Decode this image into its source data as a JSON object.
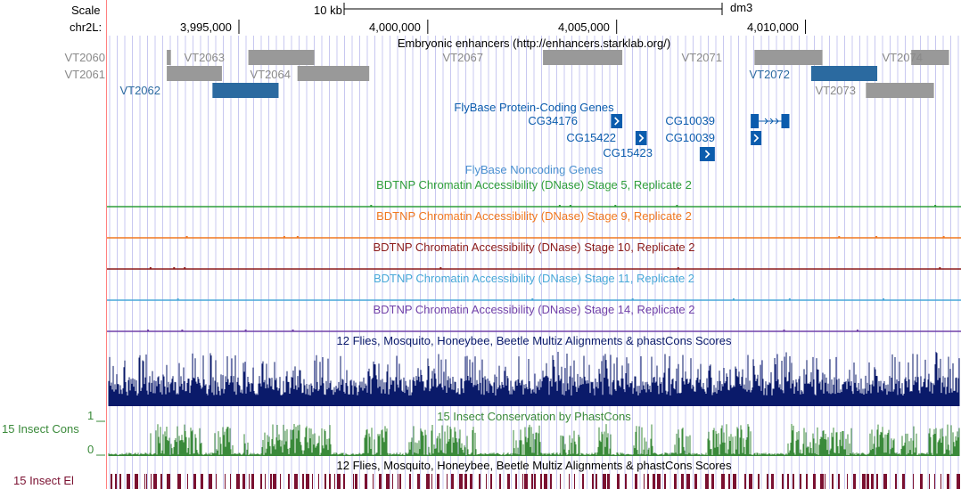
{
  "ruler": {
    "scale_label": "Scale",
    "chrom_label": "chr2L:",
    "scale_bar_text": "10 kb",
    "assembly": "dm3",
    "positions": [
      {
        "label": "3,995,000",
        "pos": 3995000
      },
      {
        "label": "4,000,000",
        "pos": 4000000
      },
      {
        "label": "4,005,000",
        "pos": 4005000
      },
      {
        "label": "4,010,000",
        "pos": 4010000
      }
    ]
  },
  "colors": {
    "grid": "#c8c8f0",
    "red_line": "#ff8080",
    "enhancer_gray": "#999999",
    "enhancer_blue": "#2b6aa0",
    "gene_blue": "#0b5cad",
    "noncoding_blue": "#4a90d0",
    "dnase_stage5": "#2e9e3a",
    "dnase_stage9": "#f07820",
    "dnase_stage10": "#8b1a1a",
    "dnase_stage11": "#48a8d8",
    "dnase_stage14": "#7040a8",
    "multiz": "#0a1a6a",
    "insect_cons": "#3a8a3a",
    "insect_el": "#7a1030"
  },
  "tracks": {
    "enhancers": {
      "title": "Embryonic enhancers (http://enhancers.starklab.org/)",
      "items": [
        {
          "label": "VT2060",
          "start": 3993090,
          "end": 3993200,
          "row": 0,
          "highlight": false
        },
        {
          "label": "VT2063",
          "start": 3995250,
          "end": 3997000,
          "row": 0,
          "highlight": false
        },
        {
          "label": "VT2067",
          "start": 4003050,
          "end": 4005150,
          "row": 0,
          "highlight": false
        },
        {
          "label": "VT2071",
          "start": 4008650,
          "end": 4010450,
          "row": 0,
          "highlight": false
        },
        {
          "label": "VT2074",
          "start": 4012800,
          "end": 4013800,
          "row": 0,
          "highlight": false
        },
        {
          "label": "VT2061",
          "start": 3993090,
          "end": 3994550,
          "row": 1,
          "highlight": false
        },
        {
          "label": "VT2064",
          "start": 3996550,
          "end": 3998450,
          "row": 1,
          "highlight": false
        },
        {
          "label": "VT2072",
          "start": 4010150,
          "end": 4011900,
          "row": 1,
          "highlight": true
        },
        {
          "label": "VT2062",
          "start": 3994300,
          "end": 3996050,
          "row": 2,
          "highlight": true
        },
        {
          "label": "VT2073",
          "start": 4011600,
          "end": 4013400,
          "row": 2,
          "highlight": false
        }
      ]
    },
    "coding_genes": {
      "title": "FlyBase Protein-Coding Genes",
      "items": [
        {
          "label": "CG34176",
          "start": 4004850,
          "end": 4005150,
          "row": 0
        },
        {
          "label": "CG10039",
          "start": 4008550,
          "end": 4009550,
          "row": 0
        },
        {
          "label": "CG15422",
          "start": 4005500,
          "end": 4005800,
          "row": 1
        },
        {
          "label": "CG10039",
          "start": 4008550,
          "end": 4008800,
          "row": 1
        },
        {
          "label": "CG15423",
          "start": 4007200,
          "end": 4007600,
          "row": 2
        }
      ]
    },
    "noncoding_genes": {
      "title": "FlyBase Noncoding Genes"
    },
    "dnase": [
      {
        "title": "BDTNP Chromatin Accessibility (DNase) Stage 5, Replicate 2",
        "color_key": "dnase_stage5"
      },
      {
        "title": "BDTNP Chromatin Accessibility (DNase) Stage 9, Replicate 2",
        "color_key": "dnase_stage9"
      },
      {
        "title": "BDTNP Chromatin Accessibility (DNase) Stage 10, Replicate 2",
        "color_key": "dnase_stage10"
      },
      {
        "title": "BDTNP Chromatin Accessibility (DNase) Stage 11, Replicate 2",
        "color_key": "dnase_stage11"
      },
      {
        "title": "BDTNP Chromatin Accessibility (DNase) Stage 14, Replicate 2",
        "color_key": "dnase_stage14"
      }
    ],
    "multiz": {
      "title": "12 Flies, Mosquito, Honeybee, Beetle Multiz Alignments & phastCons Scores"
    },
    "insect_cons": {
      "title": "15 Insect Conservation by PhastCons",
      "side_label": "15 Insect Cons",
      "ymax_label": "1",
      "ymin_label": "0"
    },
    "insect_el": {
      "title": "12 Flies, Mosquito, Honeybee, Beetle Multiz Alignments & phastCons Scores",
      "side_label": "15 Insect El"
    }
  }
}
